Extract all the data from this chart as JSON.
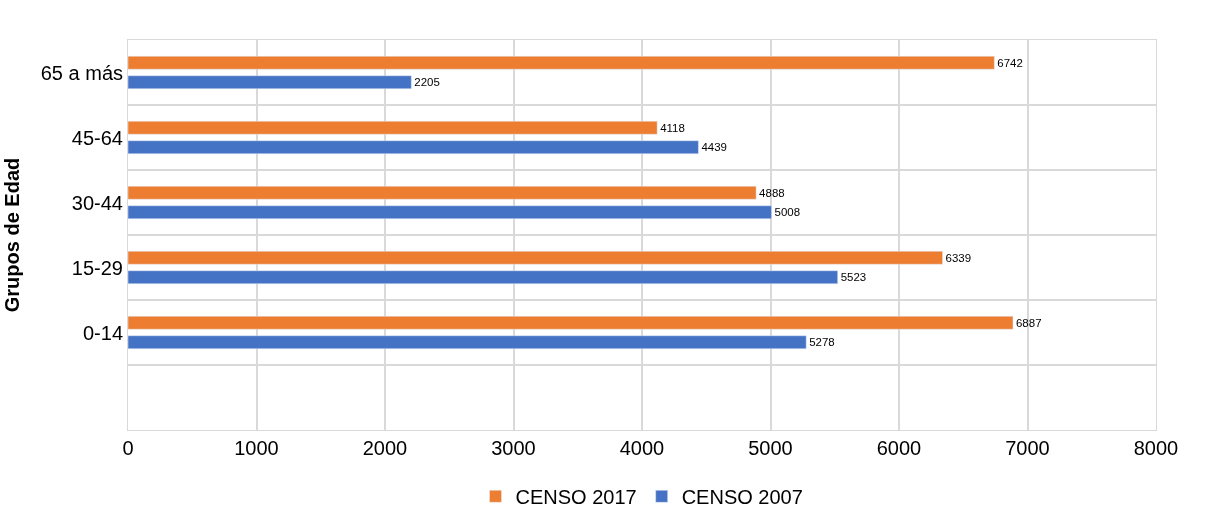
{
  "chart_data": {
    "type": "bar",
    "orientation": "horizontal",
    "ylabel": "Grupos de Edad",
    "categories": [
      "65 a más",
      "45-64",
      "30-44",
      "15-29",
      "0-14",
      null
    ],
    "series": [
      {
        "name": "CENSO 2017",
        "color": "#ed7d31",
        "values": [
          6742,
          4118,
          4888,
          6339,
          6887,
          null
        ]
      },
      {
        "name": "CENSO 2007",
        "color": "#4472c4",
        "values": [
          2205,
          4439,
          5008,
          5523,
          5278,
          null
        ]
      }
    ],
    "xlim": [
      0,
      8000
    ],
    "xticks": [
      0,
      1000,
      2000,
      3000,
      4000,
      5000,
      6000,
      7000,
      8000
    ],
    "data_labels": true,
    "grid": true,
    "legend": "bottom"
  }
}
